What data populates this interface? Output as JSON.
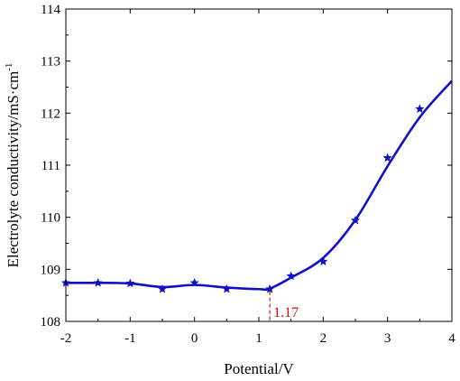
{
  "chart_data": {
    "type": "line",
    "title": "",
    "xlabel": "Potential/V",
    "ylabel": "Electrolyte conductivity/mS·cm",
    "ylabel_superscript": "-1",
    "xlim": [
      -2,
      4
    ],
    "ylim": [
      108,
      114
    ],
    "xticks": [
      "-2",
      "-1",
      "0",
      "1",
      "2",
      "3",
      "4"
    ],
    "yticks": [
      "108",
      "109",
      "110",
      "111",
      "112",
      "113",
      "114"
    ],
    "grid": false,
    "series": [
      {
        "marker": "star",
        "color": "#1010c8",
        "x": [
          -2.0,
          -1.5,
          -1.0,
          -0.5,
          0.0,
          0.5,
          1.17,
          1.5,
          2.0,
          2.5,
          3.0,
          3.5
        ],
        "y": [
          108.74,
          108.74,
          108.73,
          108.62,
          108.74,
          108.62,
          108.62,
          108.87,
          109.15,
          109.94,
          111.14,
          112.08
        ]
      }
    ],
    "fit_curve": {
      "color": "#1010c8",
      "x": [
        -2.0,
        -1.5,
        -1.0,
        -0.5,
        0.0,
        0.5,
        1.0,
        1.17,
        1.5,
        2.0,
        2.5,
        3.0,
        3.5,
        4.0
      ],
      "y": [
        108.74,
        108.74,
        108.73,
        108.66,
        108.7,
        108.65,
        108.62,
        108.63,
        108.84,
        109.22,
        109.95,
        110.98,
        111.92,
        112.62
      ]
    },
    "annotations": [
      {
        "x": 1.17,
        "text": "1.17",
        "color": "#cc1111"
      }
    ]
  }
}
